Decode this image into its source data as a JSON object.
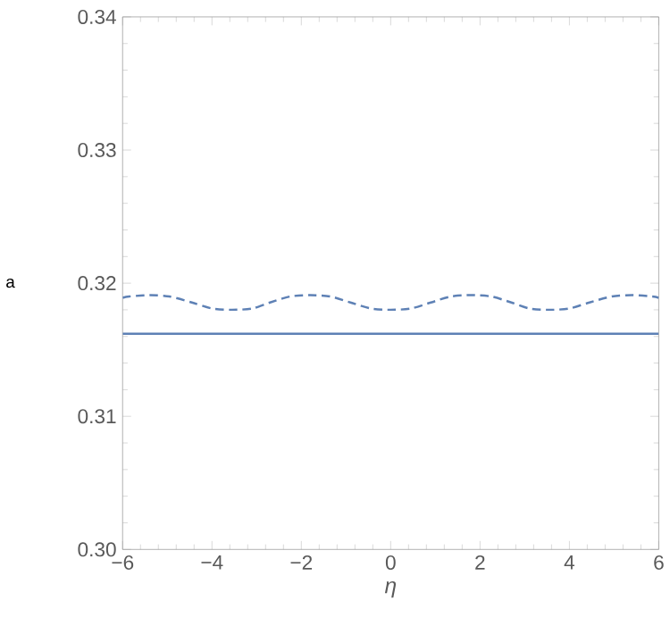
{
  "chart_data": {
    "type": "line",
    "xlabel": "η",
    "ylabel": "a",
    "xlim": [
      -6,
      6
    ],
    "ylim": [
      0.3,
      0.34
    ],
    "xticks": [
      {
        "value": -6,
        "label": "−6"
      },
      {
        "value": -4,
        "label": "−4"
      },
      {
        "value": -2,
        "label": "−2"
      },
      0,
      2,
      4,
      6
    ],
    "yticks": [
      {
        "value": 0.3,
        "label": "0.30"
      },
      0.31,
      0.32,
      0.33,
      0.34
    ],
    "series": [
      {
        "color": "#5e81b5",
        "line_style": "solid",
        "x": [
          -6,
          6
        ],
        "values": [
          0.3162,
          0.3162
        ]
      },
      {
        "color": "#5e81b5",
        "line_style": "dashed",
        "x": [
          -6,
          -5.85,
          -5.4,
          -4.95,
          -4.45,
          -4.0,
          -3.55,
          -3.1,
          -2.7,
          -2.25,
          -1.8,
          -1.35,
          -0.9,
          -0.45,
          0,
          0.45,
          0.9,
          1.35,
          1.8,
          2.25,
          2.7,
          3.1,
          3.55,
          4.0,
          4.45,
          4.95,
          5.4,
          5.85,
          6
        ],
        "values": [
          0.3189,
          0.319,
          0.3191,
          0.319,
          0.31855,
          0.3181,
          0.318,
          0.3181,
          0.31855,
          0.319,
          0.3191,
          0.319,
          0.31855,
          0.3181,
          0.318,
          0.3181,
          0.31855,
          0.319,
          0.3191,
          0.319,
          0.31855,
          0.3181,
          0.318,
          0.3181,
          0.31855,
          0.319,
          0.3191,
          0.319,
          0.3189
        ]
      }
    ]
  }
}
